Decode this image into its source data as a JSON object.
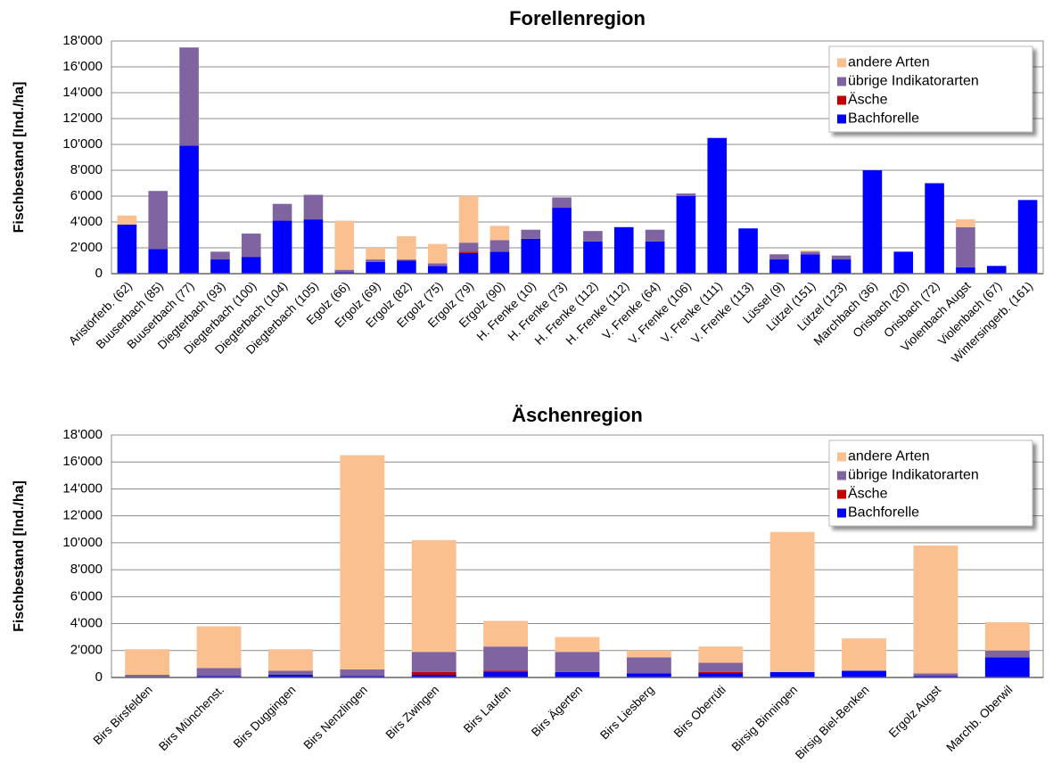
{
  "chart_data": [
    {
      "type": "bar",
      "stacked": true,
      "title": "Forellenregion",
      "y_label": "Fischbestand [Ind./ha]",
      "categories": [
        "Aristörferb. (62)",
        "Buuserbach (85)",
        "Buuserbach (77)",
        "Diegterbach (93)",
        "Diegterbach (100)",
        "Diegterbach (104)",
        "Diegterbach (105)",
        "Egolz (66)",
        "Ergolz (69)",
        "Ergolz (82)",
        "Ergolz (75)",
        "Ergolz (79)",
        "Ergolz (90)",
        "H. Frenke (10)",
        "H. Frenke (73)",
        "H. Frenke (112)",
        "H. Frenke (112)",
        "V. Frenke (64)",
        "V. Frenke (106)",
        "V. Frenke (111)",
        "V. Frenke (113)",
        "Lüssel (9)",
        "Lützel (151)",
        "Lützel (123)",
        "Marchbach (36)",
        "Orisbach (20)",
        "Orisbach (72)",
        "Violenbach Augst",
        "Violenbach (67)",
        "Wintersingerb. (161)"
      ],
      "series": [
        {
          "name": "andere Arten",
          "color": "#fac090",
          "values": [
            700,
            0,
            0,
            0,
            0,
            0,
            0,
            3800,
            900,
            1800,
            1500,
            3600,
            1100,
            0,
            0,
            0,
            0,
            0,
            0,
            0,
            0,
            0,
            100,
            0,
            0,
            0,
            0,
            600,
            0,
            0
          ]
        },
        {
          "name": "übrige Indikatorarten",
          "color": "#8064a2",
          "values": [
            0,
            4500,
            7600,
            600,
            1800,
            1300,
            1900,
            200,
            200,
            100,
            200,
            700,
            900,
            700,
            800,
            800,
            0,
            900,
            200,
            0,
            0,
            400,
            200,
            300,
            0,
            0,
            0,
            3100,
            0,
            0
          ]
        },
        {
          "name": "Äsche",
          "color": "#c00000",
          "values": [
            0,
            0,
            0,
            0,
            0,
            0,
            0,
            0,
            0,
            0,
            0,
            100,
            0,
            0,
            0,
            0,
            0,
            0,
            0,
            0,
            0,
            0,
            0,
            0,
            0,
            0,
            0,
            0,
            0,
            0
          ]
        },
        {
          "name": "Bachforelle",
          "color": "#0000ff",
          "values": [
            3800,
            1900,
            9900,
            1100,
            1300,
            4100,
            4200,
            100,
            900,
            1000,
            600,
            1600,
            1700,
            2700,
            5100,
            2500,
            3600,
            2500,
            6000,
            10500,
            3500,
            1100,
            1500,
            1100,
            8000,
            1700,
            7000,
            500,
            600,
            5700
          ]
        }
      ],
      "ylim": [
        0,
        18000
      ],
      "yticks": [
        0,
        {
          "value": 2000,
          "label": "2'000"
        },
        {
          "value": 4000,
          "label": "4'000"
        },
        {
          "value": 6000,
          "label": "6'000"
        },
        {
          "value": 8000,
          "label": "8'000"
        },
        {
          "value": 10000,
          "label": "10'000"
        },
        {
          "value": 12000,
          "label": "12'000"
        },
        {
          "value": 14000,
          "label": "14'000"
        },
        {
          "value": 16000,
          "label": "16'000"
        },
        {
          "value": 18000,
          "label": "18'000"
        }
      ],
      "grid": true,
      "legend": "upper right"
    },
    {
      "type": "bar",
      "stacked": true,
      "title": "Äschenregion",
      "y_label": "Fischbestand [Ind./ha]",
      "categories": [
        "Birs Birsfelden",
        "Birs Münchenst.",
        "Birs Duggingen",
        "Birs Nenzlingen",
        "Birs Zwingen",
        "Birs Laufen",
        "Birs Ägerten",
        "Birs Liesberg",
        "Birs Oberrüti",
        "Birsig Binningen",
        "Birsig Biel-Benken",
        "Ergolz Augst",
        "Marchb. Oberwil"
      ],
      "series": [
        {
          "name": "andere Arten",
          "color": "#fac090",
          "values": [
            1900,
            3100,
            1600,
            15900,
            8300,
            1900,
            1100,
            500,
            1200,
            10400,
            2400,
            9500,
            2100
          ]
        },
        {
          "name": "übrige Indikatorarten",
          "color": "#8064a2",
          "values": [
            200,
            600,
            300,
            500,
            1500,
            1800,
            1500,
            1200,
            700,
            0,
            0,
            200,
            500
          ]
        },
        {
          "name": "Äsche",
          "color": "#c00000",
          "values": [
            0,
            0,
            0,
            0,
            200,
            100,
            0,
            0,
            100,
            0,
            0,
            0,
            0
          ]
        },
        {
          "name": "Bachforelle",
          "color": "#0000ff",
          "values": [
            0,
            100,
            200,
            100,
            200,
            400,
            400,
            300,
            300,
            400,
            500,
            100,
            1500
          ]
        }
      ],
      "ylim": [
        0,
        18000
      ],
      "yticks": [
        0,
        {
          "value": 2000,
          "label": "2'000"
        },
        {
          "value": 4000,
          "label": "4'000"
        },
        {
          "value": 6000,
          "label": "6'000"
        },
        {
          "value": 8000,
          "label": "8'000"
        },
        {
          "value": 10000,
          "label": "10'000"
        },
        {
          "value": 12000,
          "label": "12'000"
        },
        {
          "value": 14000,
          "label": "14'000"
        },
        {
          "value": 16000,
          "label": "16'000"
        },
        {
          "value": 18000,
          "label": "18'000"
        }
      ],
      "grid": true,
      "legend": "upper right"
    }
  ]
}
